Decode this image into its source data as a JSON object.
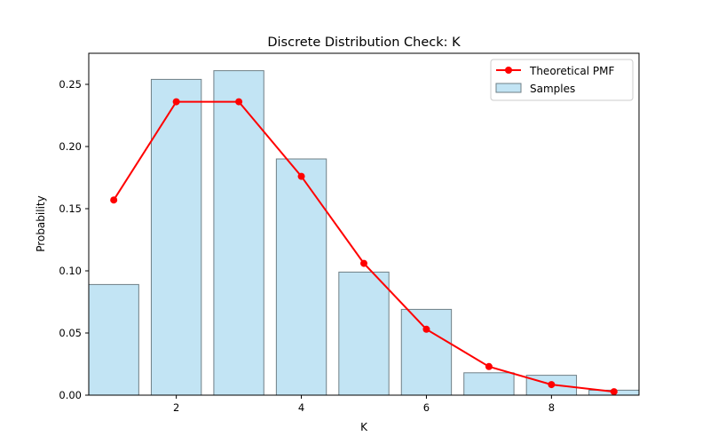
{
  "chart_data": {
    "type": "bar",
    "title": "Discrete Distribution Check: K",
    "xlabel": "K",
    "ylabel": "Probability",
    "xlim": [
      0.6,
      9.4
    ],
    "ylim": [
      0,
      0.275
    ],
    "xticks": [
      2,
      4,
      6,
      8
    ],
    "yticks": [
      0.0,
      0.05,
      0.1,
      0.15,
      0.2,
      0.25
    ],
    "grid": false,
    "legend_position": "top-right",
    "series": [
      {
        "name": "Samples",
        "type": "bar",
        "color": "#c2e4f4",
        "edge_color": "#6f7f86",
        "x": [
          1,
          2,
          3,
          4,
          5,
          6,
          7,
          8,
          9
        ],
        "values": [
          0.089,
          0.254,
          0.261,
          0.19,
          0.099,
          0.069,
          0.018,
          0.016,
          0.004
        ]
      },
      {
        "name": "Theoretical PMF",
        "type": "line",
        "color": "#ff0000",
        "marker": "circle",
        "x": [
          1,
          2,
          3,
          4,
          5,
          6,
          7,
          8,
          9
        ],
        "values": [
          0.157,
          0.236,
          0.236,
          0.176,
          0.106,
          0.053,
          0.023,
          0.0085,
          0.0028
        ]
      }
    ]
  }
}
